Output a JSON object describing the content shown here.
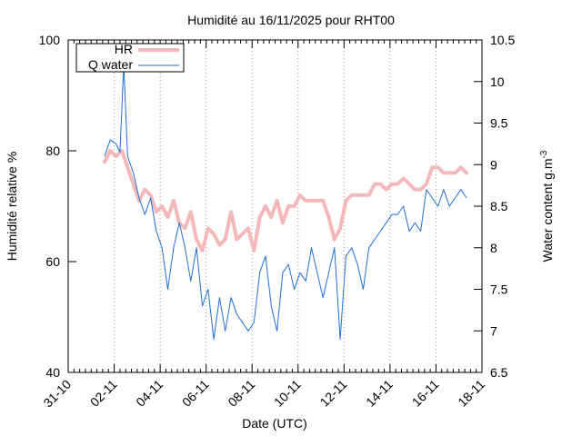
{
  "chart_data": {
    "type": "line",
    "title": "Humidité au 16/11/2025 pour RHT00",
    "xlabel": "Date (UTC)",
    "ylabel": "Humidité relative %",
    "y2label_main": "Water content g.m",
    "y2label_sup": "-3",
    "xlim": [
      "2025-10-31",
      "2025-11-18"
    ],
    "ylim": [
      40,
      100
    ],
    "y2lim": [
      6.5,
      10.5
    ],
    "x_ticks": [
      "31-10",
      "02-11",
      "04-11",
      "06-11",
      "08-11",
      "10-11",
      "12-11",
      "14-11",
      "16-11",
      "18-11"
    ],
    "y_ticks": [
      "40",
      "60",
      "80",
      "100"
    ],
    "y2_ticks": [
      "6.5",
      "7",
      "7.5",
      "8",
      "8.5",
      "9",
      "9.5",
      "10",
      "10.5"
    ],
    "grid": "vertical dashed at major x ticks",
    "legend_position": "top-left",
    "series": [
      {
        "name": "HR",
        "axis": "left",
        "color": "#f4b8b8",
        "x": [
          "2025-11-01T14:00",
          "2025-11-01T20:00",
          "2025-11-02T02:00",
          "2025-11-02T08:00",
          "2025-11-02T14:00",
          "2025-11-02T20:00",
          "2025-11-03T02:00",
          "2025-11-03T08:00",
          "2025-11-03T14:00",
          "2025-11-03T20:00",
          "2025-11-04T02:00",
          "2025-11-04T08:00",
          "2025-11-04T14:00",
          "2025-11-04T20:00",
          "2025-11-05T02:00",
          "2025-11-05T08:00",
          "2025-11-05T14:00",
          "2025-11-05T20:00",
          "2025-11-06T02:00",
          "2025-11-06T08:00",
          "2025-11-06T14:00",
          "2025-11-06T20:00",
          "2025-11-07T02:00",
          "2025-11-07T08:00",
          "2025-11-07T14:00",
          "2025-11-07T20:00",
          "2025-11-08T02:00",
          "2025-11-08T08:00",
          "2025-11-08T14:00",
          "2025-11-08T20:00",
          "2025-11-09T02:00",
          "2025-11-09T08:00",
          "2025-11-09T14:00",
          "2025-11-09T20:00",
          "2025-11-10T02:00",
          "2025-11-10T08:00",
          "2025-11-10T14:00",
          "2025-11-10T20:00",
          "2025-11-11T02:00",
          "2025-11-11T08:00",
          "2025-11-11T14:00",
          "2025-11-11T20:00",
          "2025-11-12T02:00",
          "2025-11-12T08:00",
          "2025-11-12T14:00",
          "2025-11-12T20:00",
          "2025-11-13T02:00",
          "2025-11-13T08:00",
          "2025-11-13T14:00",
          "2025-11-13T20:00",
          "2025-11-14T02:00",
          "2025-11-14T08:00",
          "2025-11-14T14:00",
          "2025-11-14T20:00",
          "2025-11-15T02:00",
          "2025-11-15T08:00",
          "2025-11-15T14:00",
          "2025-11-15T20:00",
          "2025-11-16T02:00",
          "2025-11-16T08:00",
          "2025-11-16T14:00",
          "2025-11-16T20:00",
          "2025-11-17T02:00",
          "2025-11-17T08:00"
        ],
        "values": [
          78,
          80,
          79,
          80,
          77,
          74,
          71,
          73,
          72,
          69,
          70,
          68,
          71,
          67,
          66,
          69,
          64,
          62,
          66,
          65,
          63,
          64,
          69,
          64,
          65,
          66,
          62,
          68,
          70,
          68,
          71,
          67,
          70,
          70,
          72,
          71,
          71,
          71,
          71,
          68,
          64,
          66,
          71,
          72,
          72,
          72,
          72,
          74,
          74,
          73,
          74,
          74,
          75,
          74,
          73,
          73,
          74,
          77,
          77,
          76,
          76,
          76,
          77,
          76
        ]
      },
      {
        "name": "Q water",
        "axis": "right",
        "color": "#1f6fd6",
        "x": [
          "2025-11-01T14:00",
          "2025-11-01T20:00",
          "2025-11-02T02:00",
          "2025-11-02T06:00",
          "2025-11-02T10:00",
          "2025-11-02T14:00",
          "2025-11-02T20:00",
          "2025-11-03T02:00",
          "2025-11-03T08:00",
          "2025-11-03T14:00",
          "2025-11-03T20:00",
          "2025-11-04T02:00",
          "2025-11-04T08:00",
          "2025-11-04T14:00",
          "2025-11-04T20:00",
          "2025-11-05T02:00",
          "2025-11-05T08:00",
          "2025-11-05T14:00",
          "2025-11-05T20:00",
          "2025-11-06T02:00",
          "2025-11-06T08:00",
          "2025-11-06T14:00",
          "2025-11-06T20:00",
          "2025-11-07T02:00",
          "2025-11-07T08:00",
          "2025-11-07T14:00",
          "2025-11-07T20:00",
          "2025-11-08T02:00",
          "2025-11-08T08:00",
          "2025-11-08T14:00",
          "2025-11-08T20:00",
          "2025-11-09T02:00",
          "2025-11-09T08:00",
          "2025-11-09T14:00",
          "2025-11-09T20:00",
          "2025-11-10T02:00",
          "2025-11-10T08:00",
          "2025-11-10T14:00",
          "2025-11-10T20:00",
          "2025-11-11T02:00",
          "2025-11-11T08:00",
          "2025-11-11T14:00",
          "2025-11-11T20:00",
          "2025-11-12T02:00",
          "2025-11-12T08:00",
          "2025-11-12T14:00",
          "2025-11-12T20:00",
          "2025-11-13T02:00",
          "2025-11-13T08:00",
          "2025-11-13T14:00",
          "2025-11-13T20:00",
          "2025-11-14T02:00",
          "2025-11-14T08:00",
          "2025-11-14T14:00",
          "2025-11-14T20:00",
          "2025-11-15T02:00",
          "2025-11-15T08:00",
          "2025-11-15T14:00",
          "2025-11-15T20:00",
          "2025-11-16T02:00",
          "2025-11-16T08:00",
          "2025-11-16T14:00",
          "2025-11-16T20:00",
          "2025-11-17T02:00",
          "2025-11-17T08:00"
        ],
        "values": [
          9.1,
          9.3,
          9.25,
          9.15,
          10.2,
          9.1,
          8.9,
          8.6,
          8.4,
          8.6,
          8.2,
          8.0,
          7.5,
          8.0,
          8.3,
          8.0,
          7.6,
          8.0,
          7.3,
          7.5,
          6.9,
          7.4,
          7.0,
          7.4,
          7.2,
          7.1,
          7.0,
          7.1,
          7.7,
          7.9,
          7.3,
          7.0,
          7.7,
          7.8,
          7.5,
          7.7,
          7.6,
          8.0,
          7.7,
          7.4,
          7.7,
          8.0,
          6.9,
          7.9,
          8.0,
          7.8,
          7.5,
          8.0,
          8.1,
          8.2,
          8.3,
          8.4,
          8.4,
          8.5,
          8.2,
          8.3,
          8.2,
          8.7,
          8.6,
          8.5,
          8.7,
          8.5,
          8.6,
          8.7,
          8.6
        ]
      }
    ]
  }
}
